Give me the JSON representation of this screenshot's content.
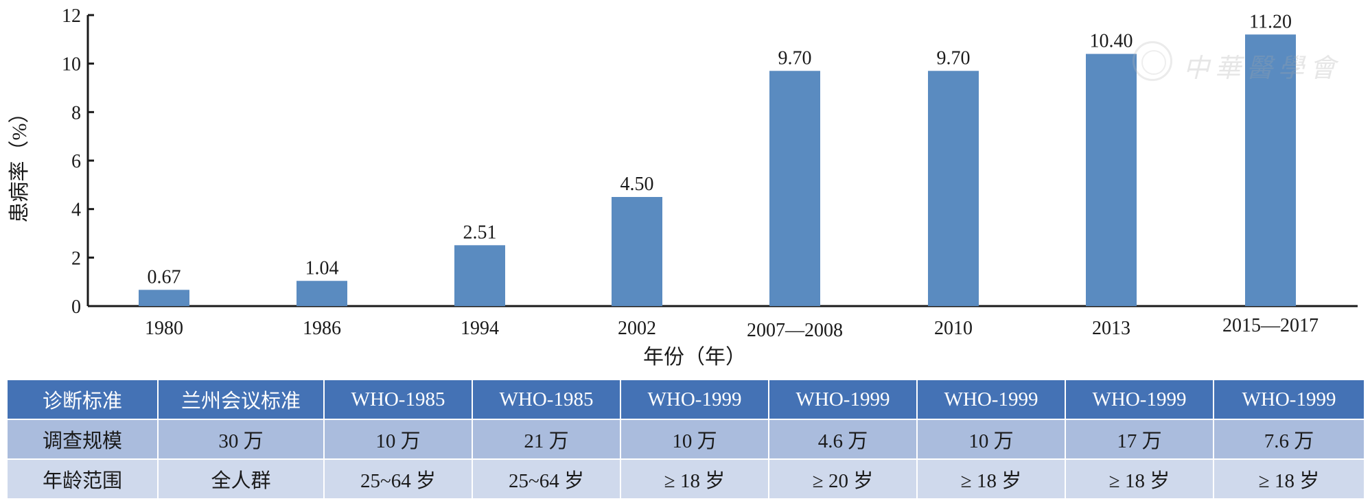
{
  "chart_data": {
    "type": "bar",
    "categories": [
      "1980",
      "1986",
      "1994",
      "2002",
      "2007—2008",
      "2010",
      "2013",
      "2015—2017"
    ],
    "values": [
      0.67,
      1.04,
      2.51,
      4.5,
      9.7,
      9.7,
      10.4,
      11.2
    ],
    "data_labels": [
      "0.67",
      "1.04",
      "2.51",
      "4.50",
      "9.70",
      "9.70",
      "10.40",
      "11.20"
    ],
    "ylabel": "患病率（%）",
    "xlabel": "年份（年）",
    "ylim": [
      0,
      12
    ],
    "yticks": [
      "0",
      "2",
      "4",
      "6",
      "8",
      "10",
      "12"
    ],
    "bar_color": "#5a8bc0",
    "grid": false,
    "legend": "none"
  },
  "watermark": {
    "text": "中華醫學會"
  },
  "table": {
    "rows": [
      [
        "诊断标准",
        "兰州会议标准",
        "WHO-1985",
        "WHO-1985",
        "WHO-1999",
        "WHO-1999",
        "WHO-1999",
        "WHO-1999",
        "WHO-1999"
      ],
      [
        "调查规模",
        "30 万",
        "10 万",
        "21 万",
        "10 万",
        "4.6 万",
        "10 万",
        "17 万",
        "7.6 万"
      ],
      [
        "年龄范围",
        "全人群",
        "25~64 岁",
        "25~64 岁",
        "≥ 18 岁",
        "≥ 20 岁",
        "≥ 18 岁",
        "≥ 18 岁",
        "≥ 18 岁"
      ]
    ],
    "header_color": "#4472b5",
    "row_colors": [
      "#aabcdd",
      "#cfd9ec"
    ]
  }
}
